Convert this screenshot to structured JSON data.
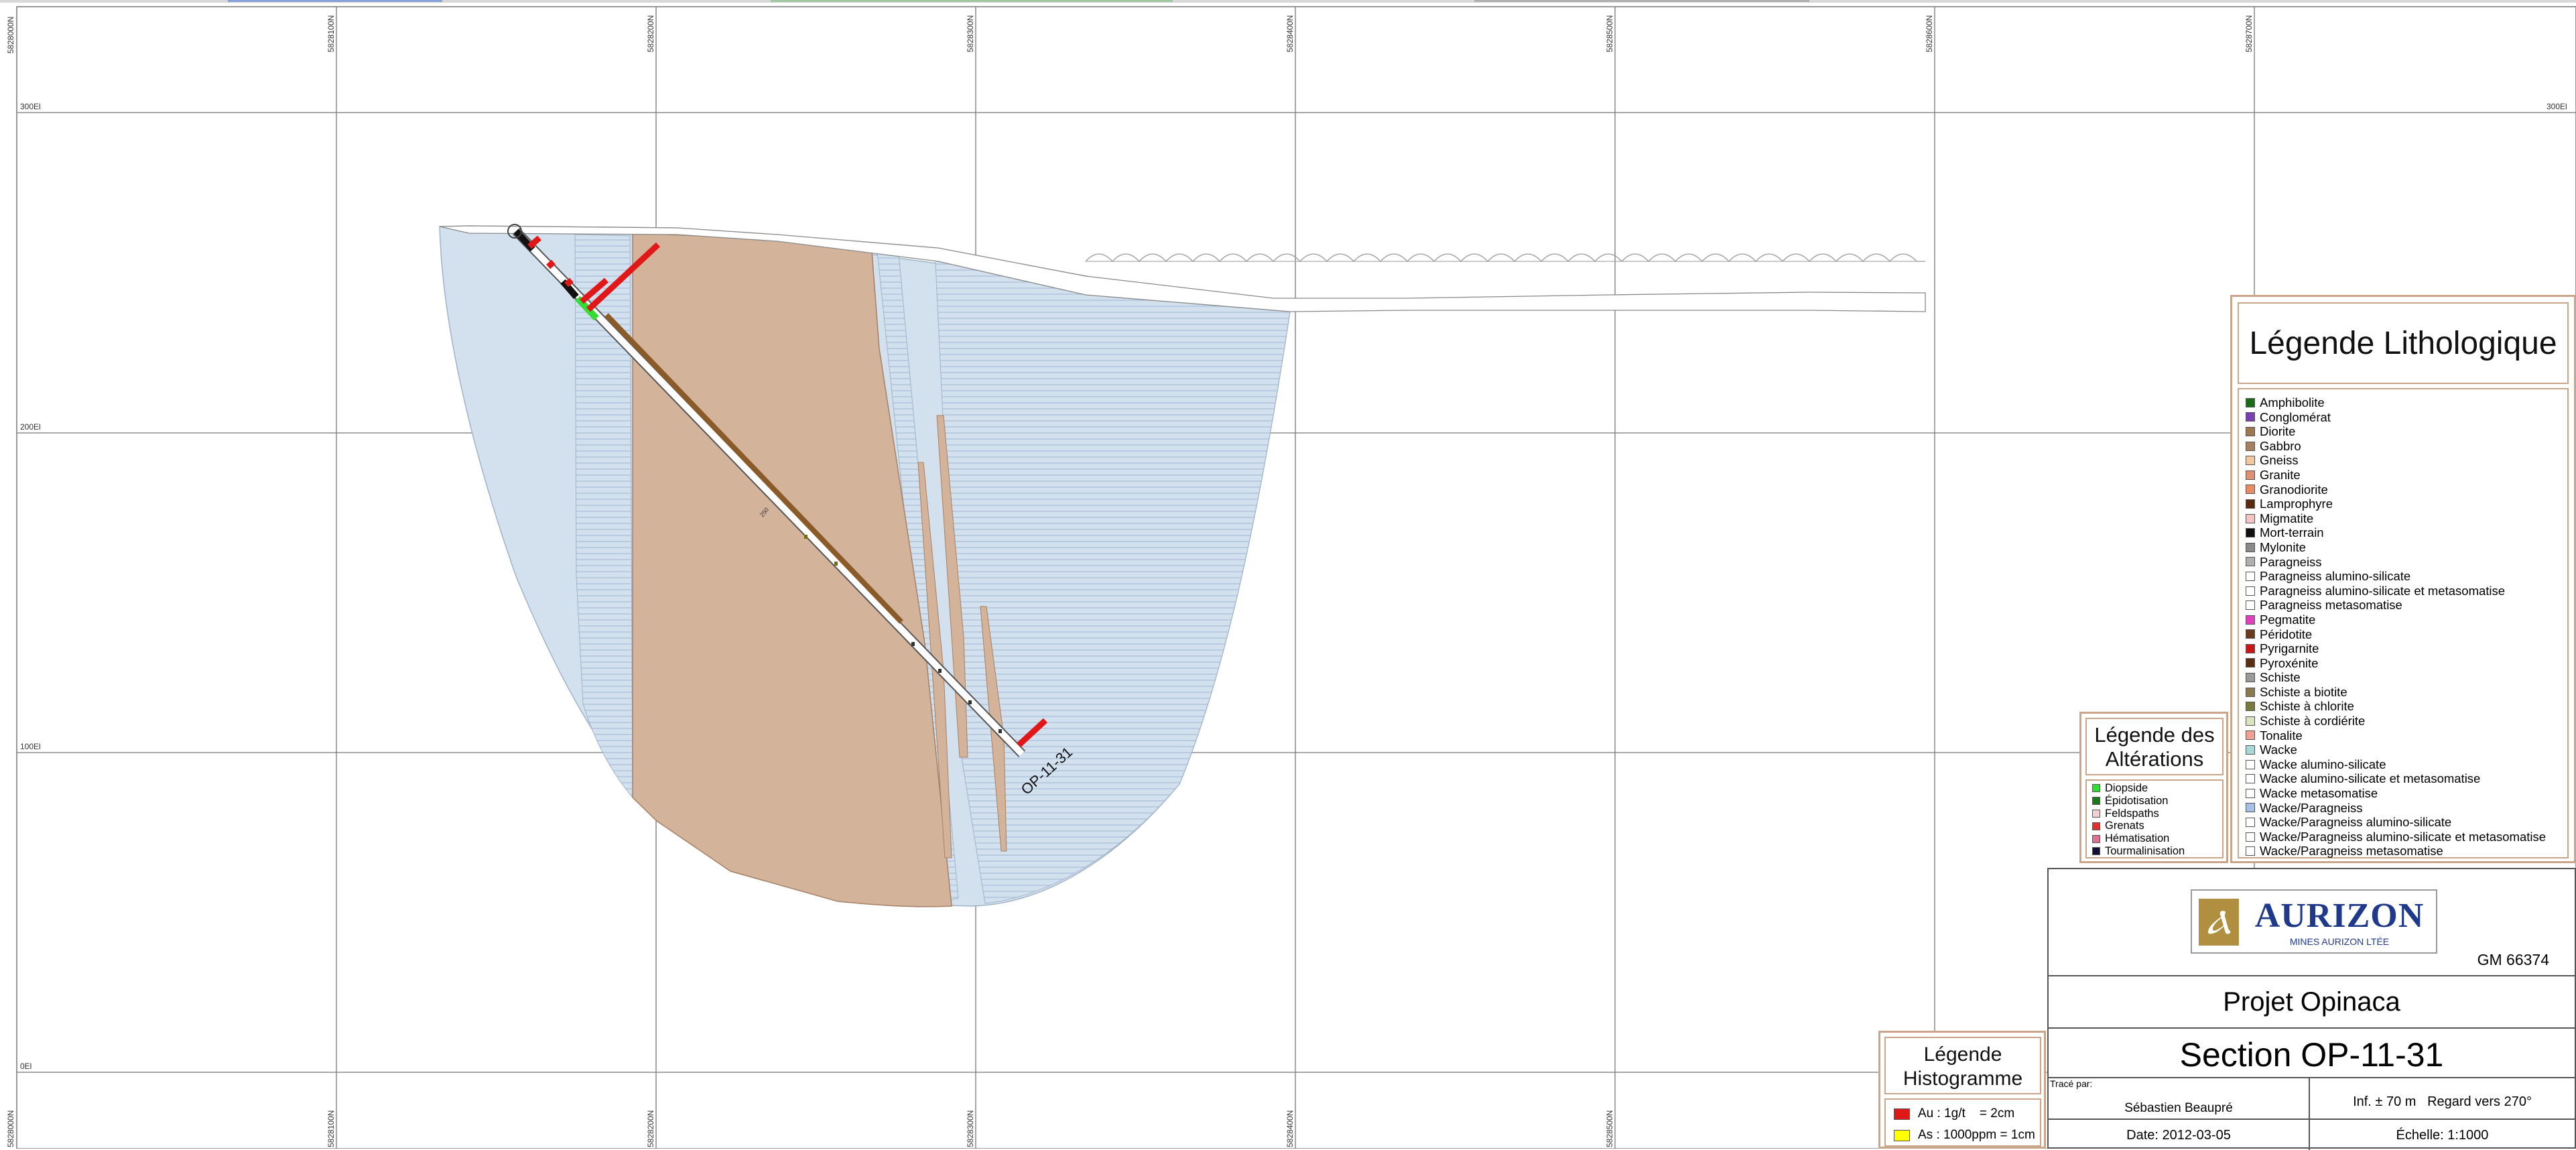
{
  "grid": {
    "northing_labels": [
      "5828100N",
      "5828200N",
      "5828300N",
      "5828400N",
      "5828500N",
      "5828600N",
      "5828700N"
    ],
    "southing_labels": [
      "5828100N",
      "5828200N",
      "5828300N",
      "5828400N",
      "5828500N"
    ],
    "elevation_labels": [
      "300El",
      "200El",
      "100El",
      "0El"
    ],
    "edge_label_top": "5828000N",
    "edge_label_bottom": "5828000N"
  },
  "drillhole": {
    "name": "OP-11-31",
    "depth_label": "250"
  },
  "lithology_legend": {
    "title": "Légende Lithologique",
    "items": [
      {
        "label": "Amphibolite",
        "color": "#1a6b1a"
      },
      {
        "label": "Conglomérat",
        "color": "#7a3fb0"
      },
      {
        "label": "Diorite",
        "color": "#a07850"
      },
      {
        "label": "Gabbro",
        "color": "#a88060"
      },
      {
        "label": "Gneiss",
        "color": "#f2c8a0"
      },
      {
        "label": "Granite",
        "color": "#e09070"
      },
      {
        "label": "Granodiorite",
        "color": "#e88a64"
      },
      {
        "label": "Lamprophyre",
        "color": "#5a2a10"
      },
      {
        "label": "Migmatite",
        "color": "#f4c4c4"
      },
      {
        "label": "Mort-terrain",
        "color": "#111111"
      },
      {
        "label": "Mylonite",
        "color": "#8a8a8a"
      },
      {
        "label": "Paragneiss",
        "color": "#b0b0b0"
      },
      {
        "label": "Paragneiss alumino-silicate",
        "color": "#ffffff"
      },
      {
        "label": "Paragneiss alumino-silicate et metasomatise",
        "color": "#ffffff"
      },
      {
        "label": "Paragneiss metasomatise",
        "color": "#ffffff"
      },
      {
        "label": "Pegmatite",
        "color": "#e040c0"
      },
      {
        "label": "Péridotite",
        "color": "#6a3a1a"
      },
      {
        "label": "Pyrigarnite",
        "color": "#c81818"
      },
      {
        "label": "Pyroxénite",
        "color": "#5a2e12"
      },
      {
        "label": "Schiste",
        "color": "#9a9a9a"
      },
      {
        "label": "Schiste a biotite",
        "color": "#8a7a50"
      },
      {
        "label": "Schiste à chlorite",
        "color": "#7a7a3a"
      },
      {
        "label": "Schiste à cordiérite",
        "color": "#d8e4c0"
      },
      {
        "label": "Tonalite",
        "color": "#f0a090"
      },
      {
        "label": "Wacke",
        "color": "#a8d8d8"
      },
      {
        "label": "Wacke alumino-silicate",
        "color": "#ffffff"
      },
      {
        "label": "Wacke alumino-silicate et metasomatise",
        "color": "#ffffff"
      },
      {
        "label": "Wacke metasomatise",
        "color": "#ffffff"
      },
      {
        "label": "Wacke/Paragneiss",
        "color": "#a8c0e8"
      },
      {
        "label": "Wacke/Paragneiss alumino-silicate",
        "color": "#ffffff"
      },
      {
        "label": "Wacke/Paragneiss alumino-silicate et metasomatise",
        "color": "#ffffff"
      },
      {
        "label": "Wacke/Paragneiss metasomatise",
        "color": "#ffffff"
      }
    ]
  },
  "alteration_legend": {
    "title_line1": "Légende des",
    "title_line2": "Altérations",
    "items": [
      {
        "label": "Diopside",
        "color": "#33dd33"
      },
      {
        "label": "Épidotisation",
        "color": "#1c7a1c"
      },
      {
        "label": "Feldspaths",
        "color": "#f0d0d0"
      },
      {
        "label": "Grenats",
        "color": "#e03030"
      },
      {
        "label": "Hématisation",
        "color": "#e07090"
      },
      {
        "label": "Tourmalinisation",
        "color": "#111133"
      }
    ]
  },
  "histogram_legend": {
    "title_line1": "Légende",
    "title_line2": "Histogramme",
    "items": [
      {
        "label": "Au : 1g/t    = 2cm",
        "color": "#e01818"
      },
      {
        "label": "As : 1000ppm = 1cm",
        "color": "#ffff00"
      }
    ]
  },
  "title_block": {
    "logo_name": "AURIZON",
    "logo_sub": "MINES AURIZON LTÉE",
    "report_id": "GM 66374",
    "project": "Projet Opinaca",
    "section": "Section OP-11-31",
    "traced_by_label": "Tracé par:",
    "traced_by": "Sébastien Beaupré",
    "date": "Date: 2012-03-05",
    "view": "Inf. ± 70 m   Regard vers 270°",
    "scale": "Échelle: 1:1000"
  },
  "colors": {
    "grid": "#777777",
    "wacke_paragneiss": "#d3e0ee",
    "stripe": "#b8cbe0",
    "diorite": "#d4b39b",
    "diorite_edge": "#a68064",
    "accent_border": "#caa58a",
    "assay_red": "#e01818",
    "logo_blue": "#1f3a8a",
    "logo_gold": "#b09040"
  }
}
